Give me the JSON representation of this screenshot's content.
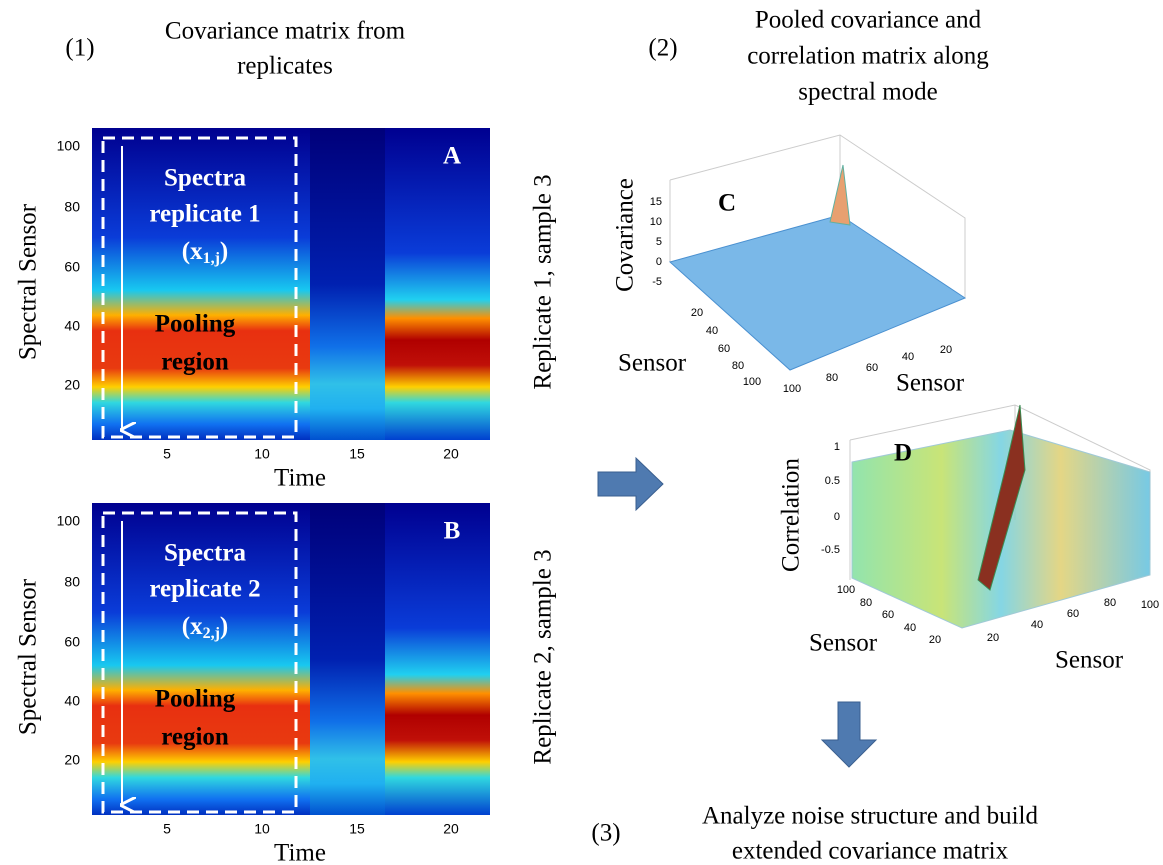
{
  "steps": [
    {
      "number": "(1)",
      "title": [
        "Covariance matrix from",
        "replicates"
      ]
    },
    {
      "number": "(2)",
      "title": [
        "Pooled covariance and",
        "correlation matrix along",
        "spectral mode"
      ]
    },
    {
      "number": "(3)",
      "title": [
        "Analyze noise structure and build",
        "extended covariance matrix"
      ]
    }
  ],
  "heatmaps": [
    {
      "panel": "A",
      "ylabel": "Spectral Sensor",
      "xlabel": "Time",
      "yticks": [
        100,
        80,
        60,
        40,
        20
      ],
      "xticks": [
        5,
        10,
        15,
        20
      ],
      "side_label": "Replicate 1, sample 3",
      "box_lines": [
        "Spectra",
        "replicate 1"
      ],
      "box_var": "(x",
      "box_sub": "1,j",
      "box_end": ")",
      "pool_lines": [
        "Pooling",
        "region"
      ]
    },
    {
      "panel": "B",
      "ylabel": "Spectral Sensor",
      "xlabel": "Time",
      "yticks": [
        100,
        80,
        60,
        40,
        20
      ],
      "xticks": [
        5,
        10,
        15,
        20
      ],
      "side_label": "Replicate 2, sample 3",
      "box_lines": [
        "Spectra",
        "replicate 2"
      ],
      "box_var": "(x",
      "box_sub": "2,j",
      "box_end": ")",
      "pool_lines": [
        "Pooling",
        "region"
      ]
    }
  ],
  "surfaces": [
    {
      "panel": "C",
      "zlabel": "Covariance",
      "zticks": [
        15,
        10,
        5,
        0,
        -5
      ],
      "left_label": "Sensor",
      "left_ticks": [
        20,
        40,
        60,
        80,
        100
      ],
      "right_label": "Sensor",
      "right_ticks": [
        20,
        40,
        60,
        80,
        100
      ]
    },
    {
      "panel": "D",
      "zlabel": "Correlation",
      "zticks": [
        1,
        0.5,
        0,
        -0.5
      ],
      "left_label": "Sensor",
      "left_ticks": [
        100,
        80,
        60,
        40,
        20
      ],
      "right_label": "Sensor",
      "right_ticks": [
        20,
        40,
        60,
        80,
        100
      ]
    }
  ]
}
